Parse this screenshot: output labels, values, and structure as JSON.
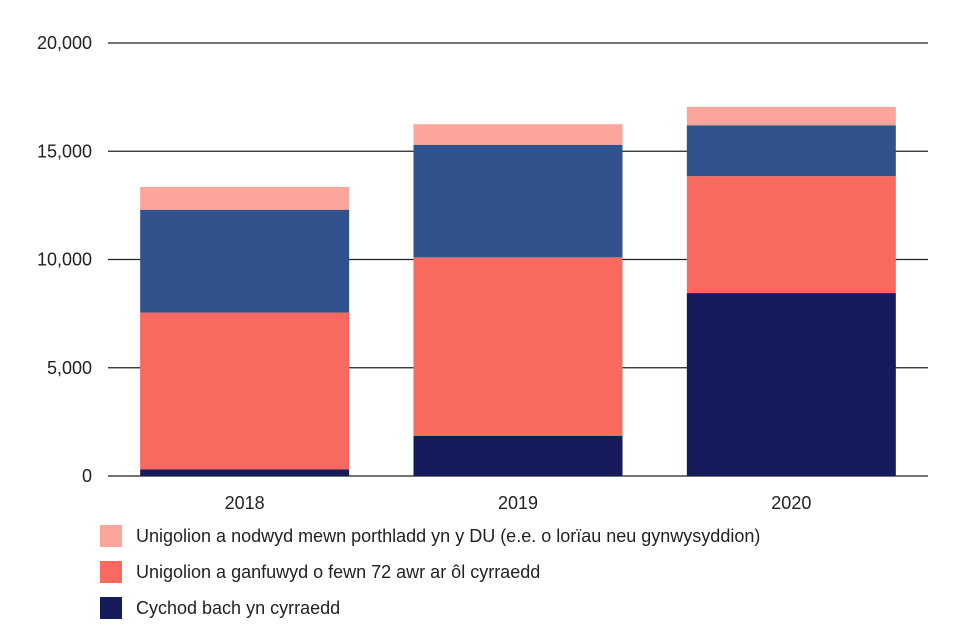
{
  "chart_data": {
    "type": "bar",
    "stacked": true,
    "categories": [
      "2018",
      "2019",
      "2020"
    ],
    "series": [
      {
        "name": "Cychod bach yn cyrraedd",
        "color": "#161B5C",
        "values": [
          300,
          1850,
          8450
        ]
      },
      {
        "name": "Unigolion a ganfuwyd o fewn 72 awr ar ôl cyrraedd",
        "color": "#F8695F",
        "values": [
          7250,
          8250,
          5400
        ]
      },
      {
        "name": "",
        "color": "#32528E",
        "values": [
          4750,
          5200,
          2350
        ]
      },
      {
        "name": "Unigolion a nodwyd mewn porthladd yn y DU (e.e. o lorïau neu gynwysyddion)",
        "color": "#FCA59A",
        "values": [
          1050,
          950,
          850
        ]
      }
    ],
    "yticks": [
      "0",
      "5,000",
      "10,000",
      "15,000",
      "20,000"
    ],
    "ylim": [
      0,
      20000
    ],
    "grid": true,
    "legend": [
      {
        "label": "Unigolion a nodwyd mewn porthladd yn y DU (e.e. o lorïau neu gynwysyddion)",
        "color": "#FCA59A"
      },
      {
        "label": "Unigolion a ganfuwyd o fewn 72 awr ar ôl cyrraedd",
        "color": "#F8695F"
      },
      {
        "label": "Cychod bach yn cyrraedd",
        "color": "#161B5C"
      }
    ],
    "title": "",
    "xlabel": "",
    "ylabel": ""
  }
}
